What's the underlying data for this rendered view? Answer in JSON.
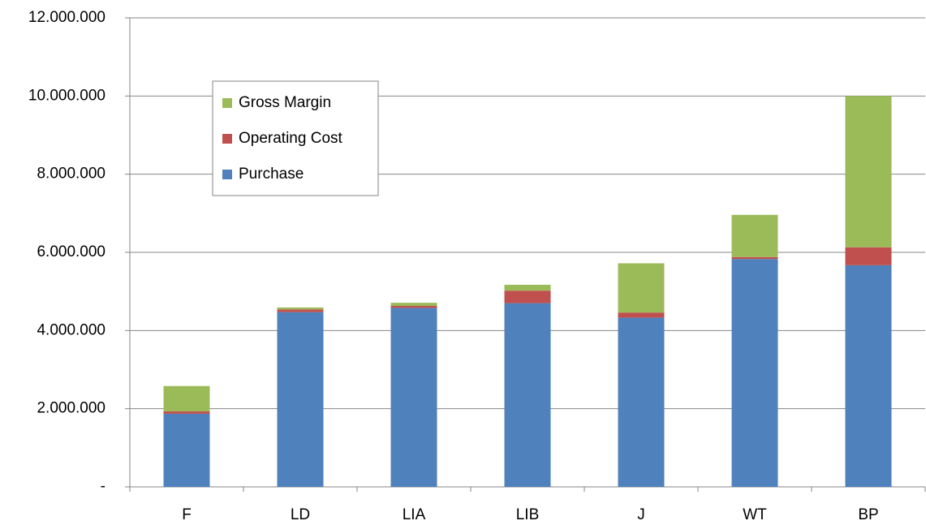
{
  "chart_data": {
    "type": "stacked_bar",
    "categories": [
      "F",
      "LD",
      "LIA",
      "LIB",
      "J",
      "WT",
      "BP"
    ],
    "series": [
      {
        "name": "Purchase",
        "color": "#4f81bd",
        "values": [
          1870000,
          4470000,
          4580000,
          4700000,
          4330000,
          5830000,
          5670000
        ]
      },
      {
        "name": "Operating Cost",
        "color": "#c0504d",
        "values": [
          60000,
          70000,
          50000,
          320000,
          130000,
          50000,
          460000
        ]
      },
      {
        "name": "Gross Margin",
        "color": "#9bbb59",
        "values": [
          650000,
          50000,
          80000,
          150000,
          1260000,
          1080000,
          3870000
        ]
      }
    ],
    "ylim": [
      0,
      12000000
    ],
    "yticks": [
      {
        "value": 0,
        "label": "-"
      },
      {
        "value": 2000000,
        "label": "2.000.000"
      },
      {
        "value": 4000000,
        "label": "4.000.000"
      },
      {
        "value": 6000000,
        "label": "6.000.000"
      },
      {
        "value": 8000000,
        "label": "8.000.000"
      },
      {
        "value": 10000000,
        "label": "10.000.000"
      },
      {
        "value": 12000000,
        "label": "12.000.000"
      }
    ],
    "grid": true,
    "legend": "upper-left"
  }
}
